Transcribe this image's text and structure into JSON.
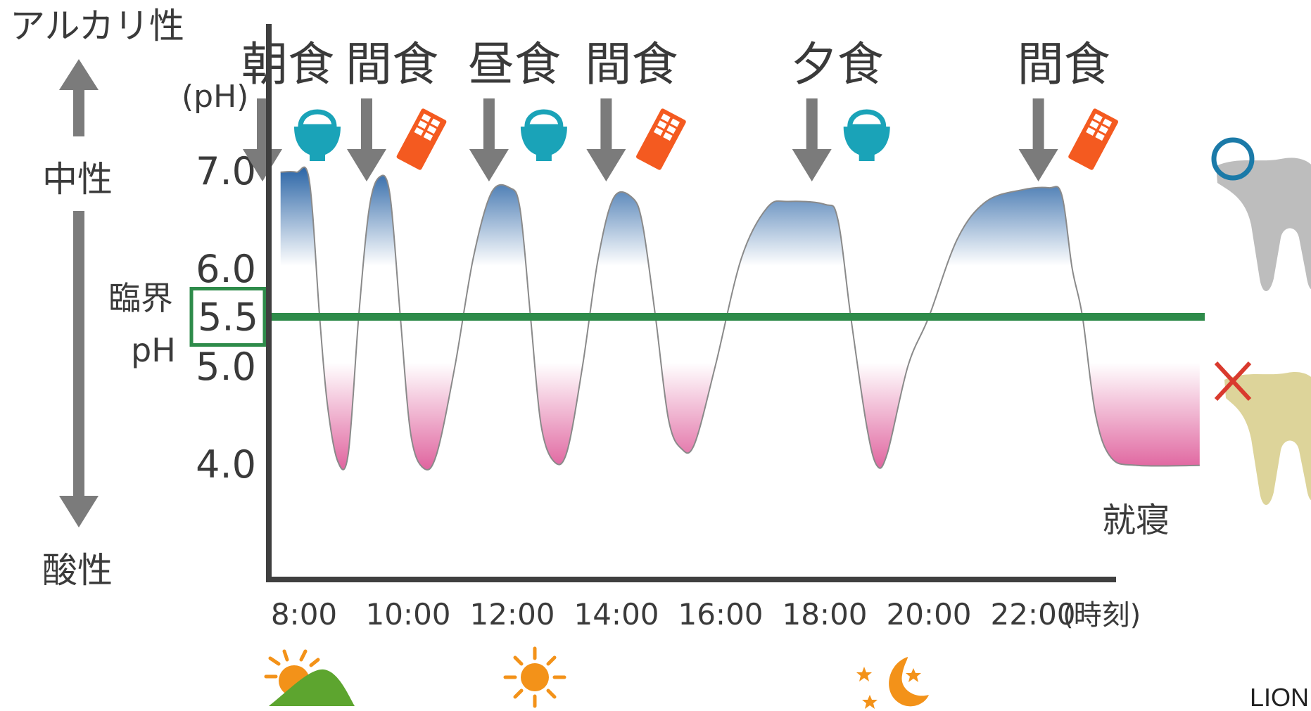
{
  "labels": {
    "alkaline": "アルカリ性",
    "neutral": "中性",
    "acidic": "酸性",
    "ph_unit": "(pH)",
    "critical_line1": "臨界",
    "critical_line2": "pH",
    "time_unit": "(時刻)",
    "bedtime": "就寝",
    "credit": "LION"
  },
  "icons": {
    "rice_bowl": "rice-bowl-icon",
    "chocolate": "chocolate-icon",
    "sunrise": "sunrise-icon",
    "sun": "sun-icon",
    "moon": "moon-stars-icon",
    "healthy_tooth": "healthy-tooth-icon",
    "decayed_tooth": "decayed-tooth-icon"
  },
  "colors": {
    "axis": "#3f3f3f",
    "arrow": "#7b7b7b",
    "critical_line": "#2e8b4a",
    "alkaline_fill": "#2f68a8",
    "acid_fill": "#d9438a",
    "curve": "#8a8a8a",
    "bowl": "#1aa3b8",
    "chocolate": "#f45a20",
    "circle_mark": "#1b7aa8",
    "cross_mark": "#d93a2e",
    "healthy_tooth": "#bdbdbd",
    "decayed_tooth": "#ddd49a",
    "sun": "#f39219",
    "hill": "#5da52f"
  },
  "chart_data": {
    "type": "line",
    "xlabel": "(時刻)",
    "ylabel": "(pH)",
    "x_ticks": [
      "8:00",
      "10:00",
      "12:00",
      "14:00",
      "16:00",
      "18:00",
      "20:00",
      "22:00"
    ],
    "y_ticks": [
      "7.0",
      "6.0",
      "5.0",
      "4.0"
    ],
    "ylim": [
      3.1,
      7.6
    ],
    "critical_ph": {
      "label": "5.5",
      "value": 5.5
    },
    "meals": [
      {
        "label": "朝食",
        "time": 7.5,
        "food": "rice"
      },
      {
        "label": "間食",
        "time": 9.5,
        "food": "chocolate"
      },
      {
        "label": "昼食",
        "time": 11.85,
        "food": "rice"
      },
      {
        "label": "間食",
        "time": 14.1,
        "food": "chocolate"
      },
      {
        "label": "夕食",
        "time": 18.05,
        "food": "rice"
      },
      {
        "label": "間食",
        "time": 22.4,
        "food": "chocolate"
      }
    ],
    "series": [
      {
        "points": [
          [
            7.55,
            6.98
          ],
          [
            7.85,
            6.98
          ],
          [
            8.1,
            6.9
          ],
          [
            8.3,
            5.5
          ],
          [
            8.45,
            4.6
          ],
          [
            8.65,
            4.02
          ],
          [
            8.85,
            4.1
          ],
          [
            9.05,
            5.5
          ],
          [
            9.25,
            6.6
          ],
          [
            9.45,
            6.93
          ],
          [
            9.65,
            6.75
          ],
          [
            9.85,
            5.5
          ],
          [
            10.05,
            4.3
          ],
          [
            10.3,
            3.95
          ],
          [
            10.55,
            4.1
          ],
          [
            10.9,
            5.0
          ],
          [
            11.25,
            6.1
          ],
          [
            11.6,
            6.77
          ],
          [
            11.95,
            6.82
          ],
          [
            12.15,
            6.6
          ],
          [
            12.35,
            5.5
          ],
          [
            12.55,
            4.4
          ],
          [
            12.8,
            4.02
          ],
          [
            13.05,
            4.12
          ],
          [
            13.35,
            5.0
          ],
          [
            13.65,
            6.1
          ],
          [
            13.95,
            6.72
          ],
          [
            14.3,
            6.72
          ],
          [
            14.5,
            6.45
          ],
          [
            14.75,
            5.5
          ],
          [
            15.0,
            4.45
          ],
          [
            15.25,
            4.15
          ],
          [
            15.5,
            4.2
          ],
          [
            15.9,
            5.0
          ],
          [
            16.4,
            6.1
          ],
          [
            16.9,
            6.62
          ],
          [
            17.3,
            6.68
          ],
          [
            18.0,
            6.65
          ],
          [
            18.25,
            6.5
          ],
          [
            18.5,
            5.5
          ],
          [
            18.8,
            4.4
          ],
          [
            19.0,
            3.98
          ],
          [
            19.2,
            4.1
          ],
          [
            19.6,
            5.0
          ],
          [
            20.0,
            5.5
          ],
          [
            20.55,
            6.3
          ],
          [
            21.1,
            6.68
          ],
          [
            21.8,
            6.8
          ],
          [
            22.3,
            6.82
          ],
          [
            22.55,
            6.75
          ],
          [
            22.75,
            6.0
          ],
          [
            22.95,
            5.5
          ],
          [
            23.2,
            4.5
          ],
          [
            23.5,
            4.06
          ],
          [
            24.0,
            3.98
          ],
          [
            25.2,
            3.98
          ]
        ]
      }
    ]
  }
}
